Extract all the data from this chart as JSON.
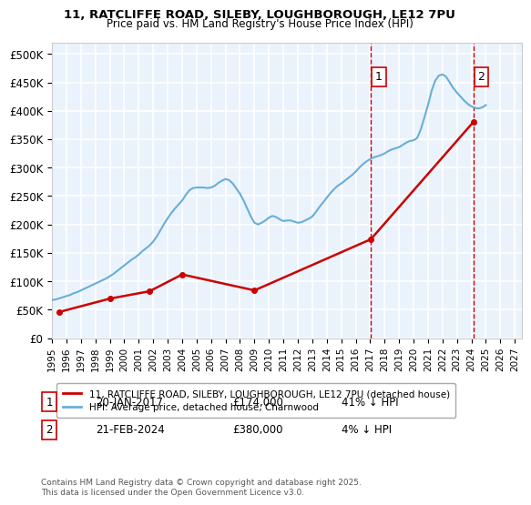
{
  "title_line1": "11, RATCLIFFE ROAD, SILEBY, LOUGHBOROUGH, LE12 7PU",
  "title_line2": "Price paid vs. HM Land Registry's House Price Index (HPI)",
  "xlabel": "",
  "ylabel": "",
  "ylim": [
    0,
    520000
  ],
  "yticks": [
    0,
    50000,
    100000,
    150000,
    200000,
    250000,
    300000,
    350000,
    400000,
    450000,
    500000
  ],
  "ytick_labels": [
    "£0",
    "£50K",
    "£100K",
    "£150K",
    "£200K",
    "£250K",
    "£300K",
    "£350K",
    "£400K",
    "£450K",
    "£500K"
  ],
  "xlim_start": 1995.0,
  "xlim_end": 2027.5,
  "hpi_color": "#6aaed6",
  "price_color": "#cc0000",
  "dashed_line_color": "#cc0000",
  "background_color": "#eaf3fb",
  "grid_color": "#ffffff",
  "legend_label_price": "11, RATCLIFFE ROAD, SILEBY, LOUGHBOROUGH, LE12 7PU (detached house)",
  "legend_label_hpi": "HPI: Average price, detached house, Charnwood",
  "transaction1_date": "20-JAN-2017",
  "transaction1_price": 174000,
  "transaction1_hpi_pct": "41% ↓ HPI",
  "transaction2_date": "21-FEB-2024",
  "transaction2_price": 380000,
  "transaction2_hpi_pct": "4% ↓ HPI",
  "transaction1_x": 2017.05,
  "transaction2_x": 2024.13,
  "transaction1_y": 174000,
  "transaction2_y": 380000,
  "footnote": "Contains HM Land Registry data © Crown copyright and database right 2025.\nThis data is licensed under the Open Government Licence v3.0.",
  "hpi_x": [
    1995.0,
    1995.25,
    1995.5,
    1995.75,
    1996.0,
    1996.25,
    1996.5,
    1996.75,
    1997.0,
    1997.25,
    1997.5,
    1997.75,
    1998.0,
    1998.25,
    1998.5,
    1998.75,
    1999.0,
    1999.25,
    1999.5,
    1999.75,
    2000.0,
    2000.25,
    2000.5,
    2000.75,
    2001.0,
    2001.25,
    2001.5,
    2001.75,
    2002.0,
    2002.25,
    2002.5,
    2002.75,
    2003.0,
    2003.25,
    2003.5,
    2003.75,
    2004.0,
    2004.25,
    2004.5,
    2004.75,
    2005.0,
    2005.25,
    2005.5,
    2005.75,
    2006.0,
    2006.25,
    2006.5,
    2006.75,
    2007.0,
    2007.25,
    2007.5,
    2007.75,
    2008.0,
    2008.25,
    2008.5,
    2008.75,
    2009.0,
    2009.25,
    2009.5,
    2009.75,
    2010.0,
    2010.25,
    2010.5,
    2010.75,
    2011.0,
    2011.25,
    2011.5,
    2011.75,
    2012.0,
    2012.25,
    2012.5,
    2012.75,
    2013.0,
    2013.25,
    2013.5,
    2013.75,
    2014.0,
    2014.25,
    2014.5,
    2014.75,
    2015.0,
    2015.25,
    2015.5,
    2015.75,
    2016.0,
    2016.25,
    2016.5,
    2016.75,
    2017.0,
    2017.25,
    2017.5,
    2017.75,
    2018.0,
    2018.25,
    2018.5,
    2018.75,
    2019.0,
    2019.25,
    2019.5,
    2019.75,
    2020.0,
    2020.25,
    2020.5,
    2020.75,
    2021.0,
    2021.25,
    2021.5,
    2021.75,
    2022.0,
    2022.25,
    2022.5,
    2022.75,
    2023.0,
    2023.25,
    2023.5,
    2023.75,
    2024.0,
    2024.25,
    2024.5,
    2024.75,
    2025.0
  ],
  "hpi_y": [
    67000,
    68000,
    70000,
    72000,
    74000,
    76000,
    79000,
    81000,
    84000,
    87000,
    90000,
    93000,
    96000,
    99000,
    102000,
    105000,
    109000,
    113000,
    118000,
    123000,
    128000,
    133000,
    138000,
    142000,
    147000,
    153000,
    158000,
    163000,
    170000,
    179000,
    190000,
    201000,
    211000,
    220000,
    228000,
    235000,
    242000,
    252000,
    260000,
    264000,
    265000,
    265000,
    265000,
    264000,
    265000,
    268000,
    273000,
    277000,
    280000,
    278000,
    272000,
    263000,
    254000,
    242000,
    228000,
    214000,
    203000,
    200000,
    203000,
    207000,
    212000,
    215000,
    213000,
    209000,
    206000,
    207000,
    207000,
    205000,
    203000,
    204000,
    207000,
    210000,
    214000,
    222000,
    231000,
    239000,
    247000,
    255000,
    262000,
    268000,
    272000,
    277000,
    282000,
    287000,
    293000,
    300000,
    306000,
    311000,
    315000,
    318000,
    320000,
    322000,
    325000,
    329000,
    332000,
    334000,
    336000,
    340000,
    344000,
    347000,
    348000,
    352000,
    367000,
    388000,
    410000,
    435000,
    453000,
    462000,
    464000,
    460000,
    450000,
    440000,
    432000,
    425000,
    418000,
    412000,
    408000,
    405000,
    404000,
    406000,
    410000
  ],
  "price_x": [
    1995.5,
    1999.0,
    2001.75,
    2004.0,
    2009.0,
    2017.05,
    2024.13
  ],
  "price_y": [
    46000,
    69500,
    82500,
    112000,
    84000,
    174000,
    380000
  ]
}
